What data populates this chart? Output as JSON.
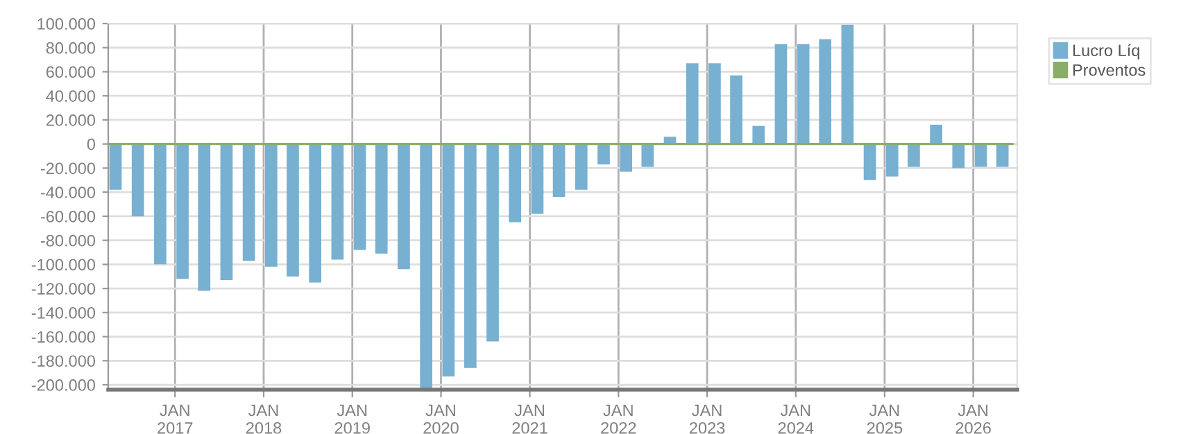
{
  "chart_data": {
    "type": "bar",
    "x": [
      "2016-05-01",
      "2016-08-01",
      "2016-11-01",
      "2017-02-01",
      "2017-05-01",
      "2017-08-01",
      "2017-11-01",
      "2018-02-01",
      "2018-05-01",
      "2018-08-01",
      "2018-11-01",
      "2019-02-01",
      "2019-05-01",
      "2019-08-01",
      "2019-11-01",
      "2020-02-01",
      "2020-05-01",
      "2020-08-01",
      "2020-11-01",
      "2021-02-01",
      "2021-05-01",
      "2021-08-01",
      "2021-11-01",
      "2022-02-01",
      "2022-05-01",
      "2022-08-01",
      "2022-11-01",
      "2023-02-01",
      "2023-05-01",
      "2023-08-01",
      "2023-11-01",
      "2024-02-01",
      "2024-05-01",
      "2024-08-01",
      "2024-11-01",
      "2025-02-01",
      "2025-05-01",
      "2025-08-01",
      "2025-11-01",
      "2026-02-01",
      "2026-05-01"
    ],
    "series": [
      {
        "name": "Lucro Líq",
        "color": "#78b0d2",
        "values": [
          -38000,
          -60000,
          -100000,
          -112000,
          -122000,
          -113000,
          -97000,
          -102000,
          -110000,
          -115000,
          -96000,
          -88000,
          -91000,
          -104000,
          -203000,
          -193000,
          -186000,
          -164000,
          -65000,
          -58000,
          -44000,
          -38000,
          -17000,
          -23000,
          -19000,
          6000,
          67000,
          67000,
          57000,
          15000,
          83000,
          83000,
          87000,
          99000,
          -30000,
          -27000,
          -19000,
          16000,
          -20000,
          -19000,
          -19000
        ]
      },
      {
        "name": "Proventos",
        "color": "#8aad6a",
        "values": [
          0,
          0,
          0,
          0,
          0,
          0,
          0,
          0,
          0,
          0,
          0,
          0,
          0,
          0,
          0,
          0,
          0,
          0,
          0,
          0,
          0,
          0,
          0,
          0,
          0,
          0,
          0,
          0,
          0,
          0,
          0,
          0,
          0,
          0,
          0,
          0,
          0,
          0,
          0,
          0,
          0
        ]
      }
    ],
    "xlim": [
      "2016-04-01",
      "2026-07-01"
    ],
    "xticks": [
      {
        "value": "2017-01-01",
        "label": "JAN\n2017"
      },
      {
        "value": "2018-01-01",
        "label": "JAN\n2018"
      },
      {
        "value": "2019-01-01",
        "label": "JAN\n2019"
      },
      {
        "value": "2020-01-01",
        "label": "JAN\n2020"
      },
      {
        "value": "2021-01-01",
        "label": "JAN\n2021"
      },
      {
        "value": "2022-01-01",
        "label": "JAN\n2022"
      },
      {
        "value": "2023-01-01",
        "label": "JAN\n2023"
      },
      {
        "value": "2024-01-01",
        "label": "JAN\n2024"
      },
      {
        "value": "2025-01-01",
        "label": "JAN\n2025"
      },
      {
        "value": "2026-01-01",
        "label": "JAN\n2026"
      }
    ],
    "ylim": [
      -204000,
      100000
    ],
    "yticks": [
      {
        "value": 100000,
        "label": "100.000"
      },
      {
        "value": 80000,
        "label": "80.000"
      },
      {
        "value": 60000,
        "label": "60.000"
      },
      {
        "value": 40000,
        "label": "40.000"
      },
      {
        "value": 20000,
        "label": "20.000"
      },
      0,
      {
        "value": -20000,
        "label": "-20.000"
      },
      {
        "value": -40000,
        "label": "-40.000"
      },
      {
        "value": -60000,
        "label": "-60.000"
      },
      {
        "value": -80000,
        "label": "-80.000"
      },
      {
        "value": -100000,
        "label": "-100.000"
      },
      {
        "value": -120000,
        "label": "-120.000"
      },
      {
        "value": -140000,
        "label": "-140.000"
      },
      {
        "value": -160000,
        "label": "-160.000"
      },
      {
        "value": -180000,
        "label": "-180.000"
      },
      {
        "value": -200000,
        "label": "-200.000"
      }
    ],
    "grid": true,
    "legend": "top right"
  }
}
